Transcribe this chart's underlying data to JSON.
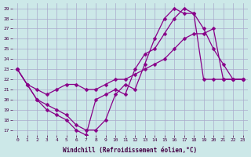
{
  "xlabel": "Windchill (Refroidissement éolien,°C)",
  "xlim": [
    -0.5,
    23.5
  ],
  "ylim": [
    16.5,
    29.5
  ],
  "xticks": [
    0,
    1,
    2,
    3,
    4,
    5,
    6,
    7,
    8,
    9,
    10,
    11,
    12,
    13,
    14,
    15,
    16,
    17,
    18,
    19,
    20,
    21,
    22,
    23
  ],
  "yticks": [
    17,
    18,
    19,
    20,
    21,
    22,
    23,
    24,
    25,
    26,
    27,
    28,
    29
  ],
  "background_color": "#cce8e8",
  "grid_color": "#aaaacc",
  "line_color": "#880088",
  "line1_x": [
    0,
    1,
    2,
    3,
    4,
    5,
    6,
    7,
    8,
    9,
    10,
    11,
    12,
    13,
    14,
    15,
    16,
    17,
    18,
    19,
    20,
    21,
    22,
    23
  ],
  "line1_y": [
    23,
    21.5,
    20,
    19,
    18.5,
    18,
    17,
    16.5,
    20,
    20.5,
    21,
    20.5,
    23,
    24.5,
    25,
    26.5,
    28,
    29,
    28.5,
    27,
    25,
    23.5,
    22,
    22
  ],
  "line2_x": [
    0,
    1,
    2,
    3,
    4,
    5,
    6,
    7,
    8,
    9,
    10,
    11,
    12,
    13,
    14,
    15,
    16,
    17,
    18,
    19,
    20,
    21,
    22,
    23
  ],
  "line2_y": [
    23,
    21.5,
    21,
    20.5,
    21,
    21.5,
    21.5,
    21,
    21,
    21.5,
    22,
    22,
    22.5,
    23,
    23.5,
    24,
    25,
    26,
    26.5,
    26.5,
    27,
    22,
    22,
    22
  ],
  "line3_x": [
    0,
    1,
    2,
    3,
    4,
    5,
    6,
    7,
    8,
    9,
    10,
    11,
    12,
    13,
    14,
    15,
    16,
    17,
    18,
    19,
    20,
    21,
    22,
    23
  ],
  "line3_y": [
    23,
    21.5,
    20,
    19.5,
    19,
    18.5,
    17.5,
    17,
    17,
    18,
    20.5,
    21.5,
    21,
    23.5,
    26,
    28,
    29,
    28.5,
    28.5,
    22,
    22,
    22,
    22,
    22
  ]
}
